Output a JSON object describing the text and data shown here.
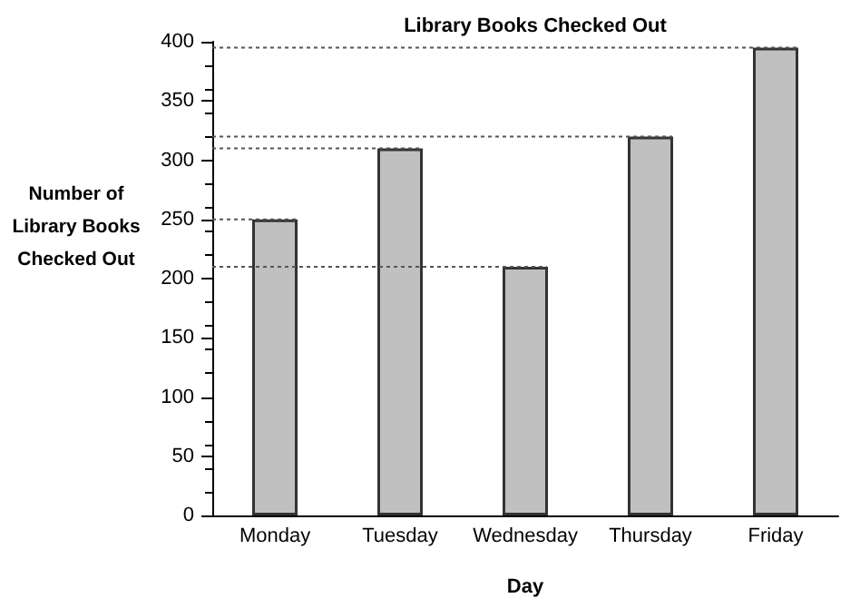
{
  "chart_data": {
    "type": "bar",
    "title": "Library Books Checked Out",
    "xlabel": "Day",
    "ylabel": "Number of Library Books Checked Out",
    "categories": [
      "Monday",
      "Tuesday",
      "Wednesday",
      "Thursday",
      "Friday"
    ],
    "values": [
      250,
      310,
      210,
      320,
      395
    ],
    "color": "#c0c0c0",
    "ylim": [
      0,
      400
    ],
    "yticks": [
      0,
      50,
      100,
      150,
      200,
      250,
      300,
      350,
      400
    ],
    "grid": false,
    "ref_lines": [
      {
        "axis": "y",
        "value": 250,
        "line_style": "dotted",
        "color": "#555555"
      },
      {
        "axis": "y",
        "value": 310,
        "line_style": "dotted",
        "color": "#555555"
      },
      {
        "axis": "y",
        "value": 210,
        "line_style": "dotted",
        "color": "#555555"
      },
      {
        "axis": "y",
        "value": 320,
        "line_style": "dotted",
        "color": "#555555"
      },
      {
        "axis": "y",
        "value": 395,
        "line_style": "dotted",
        "color": "#555555"
      }
    ]
  }
}
